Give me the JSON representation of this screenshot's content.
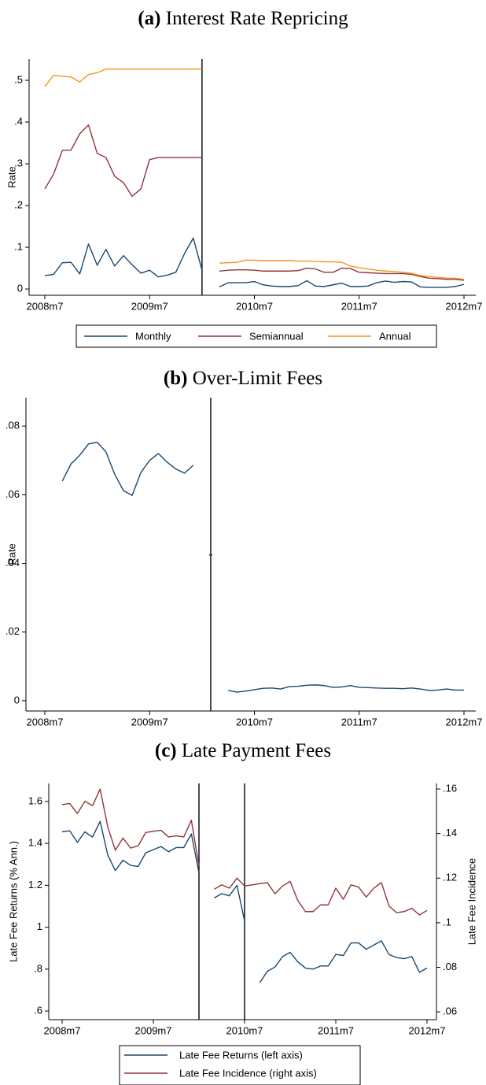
{
  "chart_data": [
    {
      "type": "line",
      "panel": "(a)",
      "title": "Interest Rate Repricing",
      "ylabel": "Rate",
      "categories": [
        "2008m7",
        null,
        null,
        null,
        null,
        null,
        null,
        null,
        null,
        null,
        null,
        null,
        "2009m7",
        null,
        null,
        null,
        null,
        null,
        null,
        null,
        null,
        null,
        null,
        null,
        "2010m7",
        null,
        null,
        null,
        null,
        null,
        null,
        null,
        null,
        null,
        null,
        null,
        "2011m7",
        null,
        null,
        null,
        null,
        null,
        null,
        null,
        null,
        null,
        null,
        null,
        "2012m7"
      ],
      "series": [
        {
          "name": "Monthly",
          "color": "#1a476f",
          "values": [
            0.032,
            0.035,
            0.063,
            0.064,
            0.036,
            0.108,
            0.057,
            0.095,
            0.055,
            0.08,
            0.058,
            0.038,
            0.045,
            0.029,
            0.033,
            0.04,
            0.085,
            0.122,
            0.045,
            null,
            0.005,
            0.015,
            0.015,
            0.015,
            0.018,
            0.01,
            0.007,
            0.006,
            0.006,
            0.008,
            0.02,
            0.007,
            0.006,
            0.01,
            0.014,
            0.006,
            0.006,
            0.007,
            0.015,
            0.019,
            0.016,
            0.018,
            0.017,
            0.005,
            0.004,
            0.004,
            0.004,
            0.006,
            0.011
          ]
        },
        {
          "name": "Semiannual",
          "color": "#90353b",
          "values": [
            0.24,
            0.275,
            0.332,
            0.333,
            0.372,
            0.393,
            0.325,
            0.315,
            0.27,
            0.255,
            0.222,
            0.24,
            0.31,
            0.315,
            0.315,
            0.315,
            0.315,
            0.315,
            0.315,
            null,
            0.043,
            0.045,
            0.046,
            0.046,
            0.045,
            0.043,
            0.043,
            0.043,
            0.043,
            0.044,
            0.05,
            0.048,
            0.04,
            0.04,
            0.05,
            0.049,
            0.04,
            0.039,
            0.038,
            0.037,
            0.037,
            0.037,
            0.035,
            0.03,
            0.026,
            0.025,
            0.023,
            0.023,
            0.021
          ]
        },
        {
          "name": "Annual",
          "color": "#f7941d",
          "values": [
            0.485,
            0.512,
            0.51,
            0.508,
            0.496,
            0.514,
            0.518,
            0.527,
            0.527,
            0.527,
            0.527,
            0.527,
            0.527,
            0.527,
            0.527,
            0.527,
            0.527,
            0.527,
            0.527,
            null,
            0.062,
            0.063,
            0.064,
            0.069,
            0.069,
            0.068,
            0.068,
            0.068,
            0.068,
            0.067,
            0.067,
            0.066,
            0.065,
            0.065,
            0.064,
            0.055,
            0.051,
            0.048,
            0.045,
            0.043,
            0.042,
            0.04,
            0.038,
            0.032,
            0.03,
            0.028,
            0.026,
            0.026,
            0.023
          ]
        }
      ],
      "ylim": [
        -0.015,
        0.551
      ],
      "yticks": [
        0,
        {
          "value": 0.1,
          "label": ".1"
        },
        {
          "value": 0.2,
          "label": ".2"
        },
        {
          "value": 0.3,
          "label": ".3"
        },
        {
          "value": 0.4,
          "label": ".4"
        },
        {
          "value": 0.5,
          "label": ".5"
        }
      ],
      "vlines": [
        18
      ],
      "legend": "bottom",
      "grid": false
    },
    {
      "type": "line",
      "panel": "(b)",
      "title": "Over-Limit Fees",
      "ylabel": "Rate",
      "categories": [
        "2008m7",
        null,
        null,
        null,
        null,
        null,
        null,
        null,
        null,
        null,
        null,
        null,
        "2009m7",
        null,
        null,
        null,
        null,
        null,
        null,
        null,
        null,
        null,
        null,
        null,
        "2010m7",
        null,
        null,
        null,
        null,
        null,
        null,
        null,
        null,
        null,
        null,
        null,
        "2011m7",
        null,
        null,
        null,
        null,
        null,
        null,
        null,
        null,
        null,
        null,
        null,
        "2012m7"
      ],
      "series": [
        {
          "color": "#1a476f",
          "values": [
            null,
            null,
            0.064,
            0.069,
            0.0715,
            0.0748,
            0.0753,
            0.0725,
            0.066,
            0.0612,
            0.0598,
            0.0665,
            0.07,
            0.072,
            0.0695,
            0.0675,
            0.0663,
            0.0686,
            null,
            0.0425,
            null,
            0.003,
            0.0025,
            0.0028,
            0.0032,
            0.0036,
            0.0037,
            0.0034,
            0.0041,
            0.0042,
            0.0045,
            0.0046,
            0.0044,
            0.0039,
            0.004,
            0.0044,
            0.0039,
            0.0038,
            0.0037,
            0.0036,
            0.0036,
            0.0035,
            0.0037,
            0.0034,
            0.003,
            0.0031,
            0.0034,
            0.0031,
            0.0031
          ]
        }
      ],
      "ylim": [
        -0.003,
        0.0883
      ],
      "yticks": [
        0,
        {
          "value": 0.02,
          "label": ".02"
        },
        {
          "value": 0.04,
          "label": ".04"
        },
        {
          "value": 0.06,
          "label": ".06"
        },
        {
          "value": 0.08,
          "label": ".08"
        }
      ],
      "vlines": [
        19
      ],
      "grid": false
    },
    {
      "type": "line",
      "panel": "(c)",
      "title": "Late Payment Fees",
      "ylabel": "Late Fee Returns (% Ann.)",
      "y2label": "Late Fee Incidence",
      "categories": [
        "2008m7",
        null,
        null,
        null,
        null,
        null,
        null,
        null,
        null,
        null,
        null,
        null,
        "2009m7",
        null,
        null,
        null,
        null,
        null,
        null,
        null,
        null,
        null,
        null,
        null,
        "2010m7",
        null,
        null,
        null,
        null,
        null,
        null,
        null,
        null,
        null,
        null,
        null,
        "2011m7",
        null,
        null,
        null,
        null,
        null,
        null,
        null,
        null,
        null,
        null,
        null,
        "2012m7"
      ],
      "series": [
        {
          "name": "Late Fee Returns (left axis)",
          "color": "#1a476f",
          "values": [
            1.455,
            1.46,
            1.405,
            1.455,
            1.43,
            1.505,
            1.345,
            1.27,
            1.32,
            1.295,
            1.29,
            1.355,
            1.37,
            1.385,
            1.36,
            1.38,
            1.38,
            1.445,
            1.26,
            null,
            1.14,
            1.16,
            1.15,
            1.2,
            1.03,
            null,
            0.735,
            0.79,
            0.81,
            0.86,
            0.88,
            0.835,
            0.805,
            0.8,
            0.815,
            0.815,
            0.87,
            0.865,
            0.925,
            0.925,
            0.895,
            0.915,
            0.935,
            0.87,
            0.855,
            0.85,
            0.86,
            0.785,
            0.805
          ]
        },
        {
          "name": "Late Fee Incidence (right axis)",
          "color": "#90353b",
          "axis": "y2",
          "values": [
            0.153,
            0.1535,
            0.149,
            0.1545,
            0.1525,
            0.16,
            0.143,
            0.1325,
            0.138,
            0.1335,
            0.1345,
            0.1405,
            0.141,
            0.1415,
            0.1385,
            0.139,
            0.1385,
            0.146,
            0.1255,
            null,
            0.115,
            0.117,
            0.1155,
            0.12,
            0.1165,
            0.117,
            0.1175,
            0.118,
            0.113,
            0.1165,
            0.1185,
            0.11,
            0.105,
            0.105,
            0.108,
            0.108,
            0.1155,
            0.1105,
            0.117,
            0.116,
            0.1115,
            0.1155,
            0.118,
            0.1075,
            0.1045,
            0.105,
            0.1065,
            0.1035,
            0.1055
          ]
        }
      ],
      "ylim": [
        0.559,
        1.686
      ],
      "yticks": [
        {
          "value": 0.6,
          "label": ".6"
        },
        {
          "value": 0.8,
          "label": ".8"
        },
        1,
        1.2,
        1.4,
        1.6
      ],
      "y2lim": [
        0.0565,
        0.1625
      ],
      "y2ticks": [
        {
          "value": 0.06,
          "label": ".06"
        },
        {
          "value": 0.08,
          "label": ".08"
        },
        {
          "value": 0.1,
          "label": ".1"
        },
        {
          "value": 0.12,
          "label": ".12"
        },
        {
          "value": 0.14,
          "label": ".14"
        },
        {
          "value": 0.16,
          "label": ".16"
        }
      ],
      "vlines": [
        18,
        24
      ],
      "legend": "bottom-stacked",
      "grid": false
    }
  ]
}
